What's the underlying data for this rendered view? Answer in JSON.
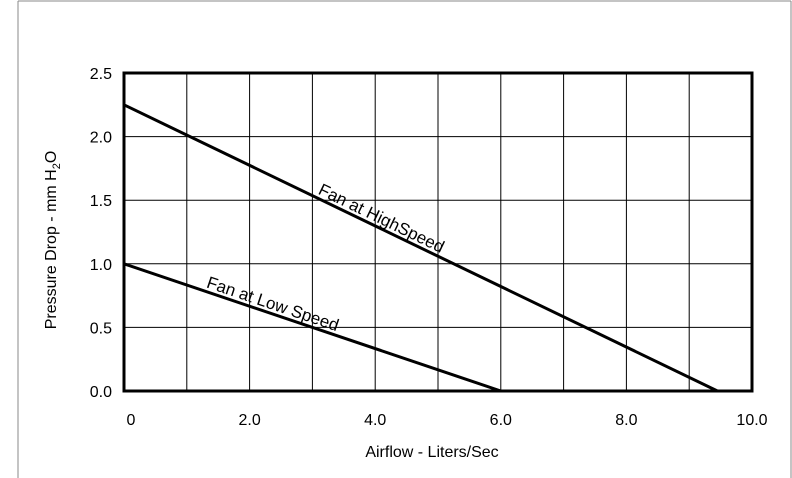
{
  "chart_data": {
    "type": "line",
    "title": "",
    "xlabel": "Airflow - Liters/Sec",
    "ylabel": {
      "main": "Pressure Drop - mm H",
      "subscript": "2",
      "tail": "O"
    },
    "xlim": [
      0,
      10
    ],
    "ylim": [
      0,
      2.5
    ],
    "x_ticks": [
      "0",
      "2.0",
      "4.0",
      "6.0",
      "8.0",
      "10.0"
    ],
    "y_ticks": [
      "0.0",
      "0.5",
      "1.0",
      "1.5",
      "2.0",
      "2.5"
    ],
    "grid": true,
    "legend": "none",
    "series": [
      {
        "name": "Fan at HighSpeed",
        "x": [
          0,
          9.45
        ],
        "y": [
          2.25,
          0
        ]
      },
      {
        "name": "Fan at Low Speed",
        "x": [
          0,
          6.0
        ],
        "y": [
          1.0,
          0
        ]
      }
    ]
  }
}
